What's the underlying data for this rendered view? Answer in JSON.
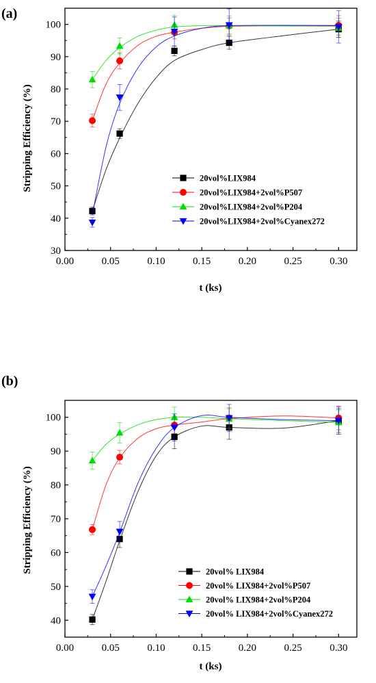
{
  "chart_data": [
    {
      "panel_label": "(a)",
      "type": "scatter",
      "xlabel": "t (ks)",
      "ylabel": "Stripping Efficiency (%)",
      "xlim": [
        0.0,
        0.32
      ],
      "ylim": [
        30,
        105
      ],
      "xticks": [
        "0.00",
        "0.05",
        "0.10",
        "0.15",
        "0.20",
        "0.25",
        "0.30"
      ],
      "yticks": [
        "30",
        "40",
        "50",
        "60",
        "70",
        "80",
        "90",
        "100"
      ],
      "x": [
        0.03,
        0.06,
        0.12,
        0.18,
        0.3
      ],
      "grid": false,
      "legend_position": "bottom-right",
      "series": [
        {
          "name": "20vol%LIX984",
          "color": "#000000",
          "marker": "square",
          "values": [
            42.2,
            66.2,
            91.8,
            94.3,
            98.5
          ],
          "errors": [
            1.2,
            1.5,
            1.5,
            2.0,
            2.5
          ],
          "fit": [
            [
              0.03,
              42.2
            ],
            [
              0.045,
              55.0
            ],
            [
              0.06,
              64.8
            ],
            [
              0.08,
              75.5
            ],
            [
              0.1,
              83.5
            ],
            [
              0.12,
              88.8
            ],
            [
              0.15,
              92.2
            ],
            [
              0.18,
              94.3
            ],
            [
              0.24,
              96.5
            ],
            [
              0.3,
              98.5
            ]
          ]
        },
        {
          "name": "20vol%LIX984+2vol%P507",
          "color": "#ff0000",
          "marker": "circle",
          "values": [
            70.2,
            88.7,
            97.5,
            99.5,
            99.7
          ],
          "errors": [
            2.0,
            2.5,
            2.0,
            2.5,
            3.0
          ],
          "fit": [
            [
              0.03,
              70.2
            ],
            [
              0.045,
              81.5
            ],
            [
              0.06,
              88.0
            ],
            [
              0.08,
              93.5
            ],
            [
              0.1,
              96.3
            ],
            [
              0.12,
              97.6
            ],
            [
              0.15,
              98.8
            ],
            [
              0.18,
              99.4
            ],
            [
              0.24,
              99.6
            ],
            [
              0.3,
              99.7
            ]
          ]
        },
        {
          "name": "20vol%LIX984+2vol%P204",
          "color": "#00dd00",
          "marker": "triangle-up",
          "values": [
            82.9,
            93.3,
            99.8,
            99.6,
            98.9
          ],
          "errors": [
            2.5,
            2.5,
            3.0,
            3.0,
            3.0
          ],
          "fit": [
            [
              0.03,
              82.9
            ],
            [
              0.045,
              88.8
            ],
            [
              0.06,
              92.8
            ],
            [
              0.08,
              96.3
            ],
            [
              0.1,
              98.2
            ],
            [
              0.12,
              99.2
            ],
            [
              0.15,
              99.6
            ],
            [
              0.18,
              99.6
            ],
            [
              0.24,
              99.5
            ],
            [
              0.3,
              99.4
            ]
          ]
        },
        {
          "name": "20vol%LIX984+2vol%Cyanex272",
          "color": "#0000ff",
          "marker": "triangle-down",
          "values": [
            38.7,
            77.4,
            97.8,
            99.8,
            99.2
          ],
          "errors": [
            1.5,
            4.0,
            4.5,
            5.0,
            5.0
          ],
          "fit": [
            [
              0.03,
              41.0
            ],
            [
              0.045,
              62.0
            ],
            [
              0.06,
              75.5
            ],
            [
              0.08,
              86.5
            ],
            [
              0.1,
              93.0
            ],
            [
              0.12,
              96.4
            ],
            [
              0.15,
              98.8
            ],
            [
              0.18,
              99.6
            ],
            [
              0.24,
              99.7
            ],
            [
              0.3,
              99.6
            ]
          ]
        }
      ]
    },
    {
      "panel_label": "(b)",
      "type": "scatter",
      "xlabel": "t (ks)",
      "ylabel": "Stripping Efficiency (%)",
      "xlim": [
        0.0,
        0.32
      ],
      "ylim": [
        35,
        105
      ],
      "xticks": [
        "0.00",
        "0.05",
        "0.10",
        "0.15",
        "0.20",
        "0.25",
        "0.30"
      ],
      "yticks": [
        "40",
        "50",
        "60",
        "70",
        "80",
        "90",
        "100"
      ],
      "x": [
        0.03,
        0.06,
        0.12,
        0.18,
        0.3
      ],
      "grid": false,
      "legend_position": "bottom-right",
      "series": [
        {
          "name": "20vol% LIX984",
          "color": "#000000",
          "marker": "square",
          "values": [
            40.2,
            64.0,
            94.2,
            97.0,
            99.0
          ],
          "errors": [
            1.5,
            2.5,
            3.5,
            3.5,
            3.5
          ],
          "fit": [
            [
              0.03,
              40.2
            ],
            [
              0.045,
              51.5
            ],
            [
              0.06,
              63.5
            ],
            [
              0.08,
              78.0
            ],
            [
              0.1,
              88.6
            ],
            [
              0.12,
              94.2
            ],
            [
              0.15,
              97.4
            ],
            [
              0.18,
              97.0
            ],
            [
              0.24,
              96.8
            ],
            [
              0.3,
              99.0
            ]
          ]
        },
        {
          "name": "20vol% LIX984+2vol%P507",
          "color": "#ff0000",
          "marker": "circle",
          "values": [
            66.8,
            88.2,
            97.7,
            99.8,
            99.8
          ],
          "errors": [
            1.5,
            2.0,
            2.5,
            3.0,
            3.5
          ],
          "fit": [
            [
              0.03,
              66.8
            ],
            [
              0.045,
              80.0
            ],
            [
              0.06,
              88.0
            ],
            [
              0.08,
              93.8
            ],
            [
              0.1,
              96.6
            ],
            [
              0.12,
              97.7
            ],
            [
              0.15,
              98.6
            ],
            [
              0.18,
              99.6
            ],
            [
              0.24,
              100.4
            ],
            [
              0.3,
              99.8
            ]
          ]
        },
        {
          "name": "20vol% LIX984+2vol%P204",
          "color": "#00dd00",
          "marker": "triangle-up",
          "values": [
            87.2,
            95.4,
            100.0,
            99.5,
            98.5
          ],
          "errors": [
            2.5,
            3.0,
            3.0,
            3.0,
            3.5
          ],
          "fit": [
            [
              0.03,
              87.2
            ],
            [
              0.045,
              92.0
            ],
            [
              0.06,
              95.0
            ],
            [
              0.08,
              97.8
            ],
            [
              0.1,
              99.3
            ],
            [
              0.12,
              100.0
            ],
            [
              0.15,
              100.0
            ],
            [
              0.18,
              99.6
            ],
            [
              0.24,
              99.0
            ],
            [
              0.3,
              98.5
            ]
          ]
        },
        {
          "name": "20vol% LIX984+2vol%Cyanex272",
          "color": "#0000ff",
          "marker": "triangle-down",
          "values": [
            47.0,
            66.2,
            97.0,
            99.8,
            99.0
          ],
          "errors": [
            2.0,
            3.0,
            4.0,
            4.0,
            4.0
          ],
          "fit": [
            [
              0.03,
              47.0
            ],
            [
              0.045,
              56.0
            ],
            [
              0.06,
              66.0
            ],
            [
              0.08,
              80.5
            ],
            [
              0.1,
              90.8
            ],
            [
              0.12,
              97.0
            ],
            [
              0.15,
              100.5
            ],
            [
              0.18,
              100.0
            ],
            [
              0.24,
              99.3
            ],
            [
              0.3,
              99.0
            ]
          ]
        }
      ]
    }
  ]
}
